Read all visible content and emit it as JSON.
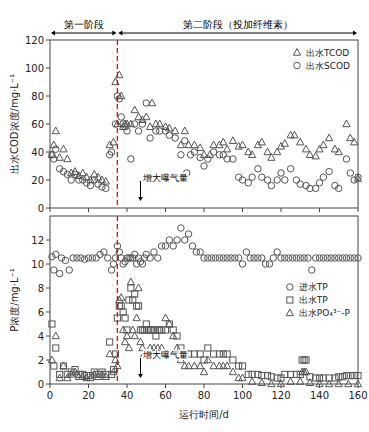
{
  "chart_data": [
    {
      "type": "scatter",
      "y_label": "出水COD浓度/mg·L⁻¹",
      "xlim": [
        0,
        160
      ],
      "ylim": [
        0,
        120
      ],
      "xticks": [
        0,
        20,
        40,
        60,
        80,
        100,
        120,
        140,
        160
      ],
      "yticks": [
        0,
        20,
        40,
        60,
        80,
        100,
        120
      ],
      "tick_labels": "y",
      "grid": false,
      "legend": "upper right",
      "phases": [
        {
          "label": "第一阶段",
          "start": 0,
          "end": 35
        },
        {
          "label": "第二阶段（投加纤维素）",
          "start": 35,
          "end": 160
        }
      ],
      "vlines": [
        {
          "x": 35,
          "color": "red",
          "line_style": "dashed"
        }
      ],
      "annotations": [
        {
          "text": "增大曝气量",
          "x": 47,
          "y": 5
        }
      ],
      "series": [
        {
          "name": "出水TCOD",
          "color": "#555555",
          "marker": "triangle",
          "x": [
            1,
            2,
            3,
            5,
            7,
            9,
            11,
            13,
            15,
            17,
            19,
            21,
            23,
            25,
            27,
            29,
            31,
            33,
            34,
            35,
            36,
            37,
            38,
            39,
            40,
            42,
            44,
            46,
            48,
            50,
            52,
            53,
            55,
            57,
            60,
            62,
            65,
            68,
            70,
            72,
            75,
            78,
            80,
            83,
            85,
            88,
            90,
            92,
            95,
            98,
            100,
            103,
            105,
            108,
            110,
            113,
            115,
            118,
            120,
            122,
            125,
            127,
            130,
            133,
            135,
            138,
            140,
            142,
            145,
            148,
            150,
            154,
            156,
            158,
            160
          ],
          "values": [
            38,
            45,
            55,
            36,
            42,
            35,
            25,
            26,
            23,
            25,
            22,
            20,
            24,
            22,
            20,
            19,
            45,
            47,
            90,
            60,
            95,
            80,
            58,
            60,
            60,
            60,
            70,
            65,
            63,
            65,
            58,
            75,
            60,
            60,
            58,
            57,
            55,
            45,
            55,
            45,
            45,
            43,
            38,
            38,
            45,
            45,
            47,
            42,
            48,
            44,
            45,
            40,
            38,
            45,
            47,
            40,
            36,
            40,
            44,
            46,
            52,
            52,
            47,
            42,
            38,
            37,
            42,
            45,
            50,
            42,
            40,
            60,
            50,
            47,
            21
          ]
        },
        {
          "name": "出水SCOD",
          "color": "#555555",
          "marker": "circle",
          "x": [
            1,
            2,
            3,
            5,
            7,
            9,
            11,
            13,
            15,
            17,
            19,
            21,
            23,
            25,
            27,
            29,
            31,
            32,
            34,
            35,
            36,
            37,
            38,
            39,
            40,
            42,
            44,
            46,
            48,
            50,
            52,
            55,
            57,
            60,
            62,
            65,
            68,
            70,
            71,
            73,
            75,
            78,
            80,
            82,
            85,
            88,
            90,
            92,
            95,
            98,
            100,
            103,
            105,
            108,
            110,
            113,
            115,
            118,
            120,
            122,
            125,
            128,
            130,
            133,
            135,
            138,
            140,
            142,
            145,
            148,
            150,
            154,
            156,
            158,
            160
          ],
          "values": [
            38,
            35,
            42,
            28,
            26,
            24,
            20,
            24,
            20,
            20,
            18,
            16,
            20,
            17,
            15,
            14,
            38,
            40,
            60,
            80,
            78,
            65,
            60,
            58,
            55,
            35,
            60,
            55,
            60,
            75,
            50,
            55,
            55,
            55,
            52,
            50,
            38,
            48,
            25,
            38,
            40,
            36,
            30,
            35,
            40,
            38,
            38,
            35,
            35,
            22,
            20,
            18,
            22,
            28,
            22,
            20,
            16,
            20,
            25,
            20,
            28,
            20,
            17,
            16,
            14,
            14,
            18,
            22,
            26,
            16,
            14,
            35,
            25,
            20,
            22
          ]
        }
      ]
    },
    {
      "type": "scatter",
      "x_label": "运行时间/d",
      "y_label": "P浓度/mg·L⁻¹",
      "xlim": [
        0,
        160
      ],
      "ylim": [
        0,
        14
      ],
      "xticks": [
        0,
        20,
        40,
        60,
        80,
        100,
        120,
        140,
        160
      ],
      "yticks": [
        0,
        2,
        4,
        6,
        8,
        10,
        12
      ],
      "tick_labels": true,
      "grid": false,
      "legend": "right",
      "vlines": [
        {
          "x": 35,
          "color": "red",
          "line_style": "dashed"
        }
      ],
      "annotations": [
        {
          "text": "增大曝气量",
          "x": 47,
          "y": 0.5
        }
      ],
      "series": [
        {
          "name": "进水TP",
          "color": "#555555",
          "marker": "circle",
          "x": [
            1,
            2,
            3,
            5,
            6,
            8,
            10,
            12,
            14,
            16,
            18,
            20,
            22,
            24,
            26,
            28,
            30,
            32,
            33,
            34,
            35,
            36,
            37,
            38,
            39,
            40,
            41,
            42,
            43,
            44,
            45,
            46,
            47,
            48,
            49,
            50,
            52,
            54,
            56,
            58,
            60,
            62,
            64,
            66,
            68,
            70,
            72,
            74,
            76,
            78,
            80,
            82,
            84,
            86,
            88,
            90,
            92,
            94,
            96,
            98,
            100,
            102,
            104,
            106,
            108,
            110,
            112,
            114,
            116,
            118,
            120,
            122,
            124,
            126,
            128,
            130,
            132,
            134,
            136,
            138,
            140,
            142,
            144,
            146,
            148,
            150,
            152,
            154,
            156,
            158,
            160
          ],
          "values": [
            10.6,
            9.5,
            10.8,
            9.2,
            10.5,
            10.3,
            9.5,
            10.5,
            10.5,
            10.5,
            10.4,
            10.5,
            10.5,
            10.5,
            10.8,
            11.0,
            10.5,
            9.5,
            10.0,
            10.5,
            11.5,
            11.0,
            10.5,
            10.0,
            10.2,
            10.5,
            10.5,
            10.5,
            10.5,
            10.8,
            10.0,
            10.5,
            10.2,
            10.0,
            10.5,
            10.8,
            10.5,
            11.0,
            10.5,
            11.5,
            11.5,
            12.0,
            11.5,
            12.0,
            13.0,
            12.0,
            12.5,
            11.5,
            11.0,
            11.0,
            10.5,
            10.5,
            10.5,
            10.5,
            10.5,
            10.5,
            10.5,
            10.5,
            10.5,
            10.5,
            10.0,
            11.0,
            10.5,
            10.5,
            10.5,
            10.5,
            10.0,
            10.0,
            10.5,
            11.0,
            10.5,
            10.5,
            10.5,
            10.5,
            10.5,
            10.5,
            10.5,
            10.5,
            9.5,
            10.5,
            10.5,
            10.5,
            10.5,
            10.5,
            10.5,
            10.5,
            10.5,
            10.5,
            10.5,
            10.5,
            10.5
          ]
        },
        {
          "name": "出水TP",
          "color": "#555555",
          "marker": "square",
          "x": [
            1,
            2,
            3,
            5,
            7,
            9,
            11,
            13,
            15,
            17,
            19,
            21,
            23,
            25,
            27,
            29,
            31,
            32,
            33,
            34,
            35,
            36,
            37,
            38,
            39,
            40,
            41,
            42,
            43,
            44,
            45,
            46,
            47,
            48,
            49,
            50,
            51,
            52,
            53,
            54,
            55,
            56,
            57,
            58,
            60,
            62,
            64,
            66,
            68,
            70,
            72,
            75,
            78,
            80,
            82,
            85,
            88,
            90,
            92,
            95,
            98,
            100,
            103,
            105,
            108,
            110,
            113,
            115,
            118,
            120,
            122,
            125,
            128,
            130,
            131,
            132,
            133,
            135,
            138,
            140,
            142,
            145,
            148,
            150,
            152,
            154,
            156,
            158,
            160
          ],
          "values": [
            5.0,
            1.5,
            3.0,
            0.8,
            1.5,
            0.8,
            1.0,
            1.2,
            0.8,
            0.8,
            0.7,
            0.7,
            1.0,
            0.8,
            1.0,
            0.8,
            3.5,
            0.8,
            1.2,
            2.5,
            5.5,
            6.5,
            6.5,
            6.0,
            5.5,
            4.5,
            7.0,
            8.0,
            7.0,
            7.5,
            6.5,
            6.5,
            4.5,
            4.5,
            4.5,
            5.0,
            4.5,
            4.5,
            4.5,
            4.5,
            4.0,
            4.5,
            4.5,
            4.5,
            4.5,
            5.0,
            4.5,
            4.0,
            3.0,
            2.5,
            2.5,
            2.5,
            2.5,
            2.0,
            3.0,
            2.5,
            2.5,
            2.5,
            2.5,
            2.0,
            1.5,
            1.5,
            0.8,
            0.8,
            0.8,
            0.7,
            0.7,
            0.6,
            0.5,
            0.5,
            0.8,
            0.8,
            0.8,
            0.8,
            2.0,
            2.0,
            2.0,
            0.6,
            0.5,
            0.5,
            0.5,
            0.5,
            0.5,
            0.6,
            0.6,
            0.7,
            0.7,
            0.7,
            0.7
          ]
        },
        {
          "name": "出水PO₄³⁻-P",
          "color": "#555555",
          "marker": "triangle",
          "x": [
            1,
            3,
            5,
            7,
            9,
            11,
            13,
            15,
            17,
            19,
            21,
            23,
            25,
            27,
            29,
            31,
            33,
            34,
            35,
            36,
            37,
            38,
            39,
            40,
            41,
            42,
            43,
            44,
            45,
            46,
            47,
            48,
            49,
            50,
            52,
            54,
            56,
            58,
            60,
            62,
            64,
            66,
            68,
            70,
            72,
            75,
            78,
            80,
            82,
            85,
            88,
            90,
            92,
            95,
            98,
            100,
            105,
            110,
            115,
            120,
            125,
            130,
            131,
            132,
            133,
            135,
            140,
            145,
            150,
            155,
            160
          ],
          "values": [
            2.0,
            4.0,
            0.5,
            1.5,
            0.5,
            0.8,
            1.0,
            0.6,
            0.6,
            0.5,
            0.5,
            0.8,
            0.6,
            0.8,
            0.6,
            2.5,
            1.0,
            2.0,
            1.5,
            7.0,
            7.2,
            4.5,
            3.5,
            4.0,
            3.0,
            8.5,
            4.5,
            4.0,
            5.5,
            8.0,
            3.5,
            3.0,
            2.5,
            2.5,
            3.0,
            3.0,
            3.0,
            3.0,
            5.5,
            5.0,
            4.0,
            3.0,
            2.0,
            1.5,
            1.5,
            1.5,
            1.5,
            1.0,
            2.0,
            1.5,
            1.5,
            1.5,
            1.5,
            1.0,
            0.5,
            0.5,
            0.2,
            0.1,
            0.0,
            0.0,
            0.2,
            0.2,
            1.0,
            1.0,
            1.0,
            0.1,
            0.0,
            0.0,
            0.0,
            0.0,
            0.0
          ]
        }
      ]
    }
  ]
}
